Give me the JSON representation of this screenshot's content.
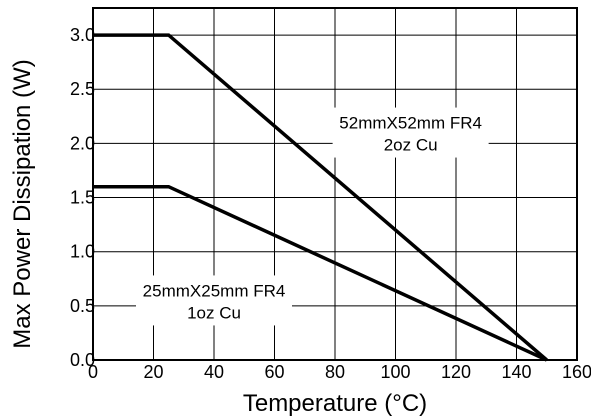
{
  "chart_data": {
    "type": "line",
    "xlabel": "Temperature (°C)",
    "ylabel": "Max Power Dissipation (W)",
    "xlim": [
      0,
      160
    ],
    "ylim": [
      0,
      3.25
    ],
    "xticks": [
      0,
      20,
      40,
      60,
      80,
      100,
      120,
      140,
      160
    ],
    "yticks": [
      0,
      0.5,
      1,
      1.5,
      2,
      2.5,
      3
    ],
    "xtick_labels": [
      "0",
      "20",
      "40",
      "60",
      "80",
      "100",
      "120",
      "140",
      "160"
    ],
    "ytick_labels": [
      "0.0",
      "0.5",
      "1.0",
      "1.5",
      "2.0",
      "2.5",
      "3.0"
    ],
    "grid": true,
    "series": [
      {
        "x": [
          0,
          25,
          150
        ],
        "y": [
          3.0,
          3.0,
          0.0
        ]
      },
      {
        "x": [
          0,
          25,
          150
        ],
        "y": [
          1.6,
          1.6,
          0.0
        ]
      }
    ],
    "annotations": [
      {
        "lines": [
          "52mmX52mm FR4",
          "2oz Cu"
        ],
        "x": 105,
        "y": 2.1
      },
      {
        "lines": [
          "25mmX25mm FR4",
          "1oz Cu"
        ],
        "x": 40,
        "y": 0.55
      }
    ]
  }
}
